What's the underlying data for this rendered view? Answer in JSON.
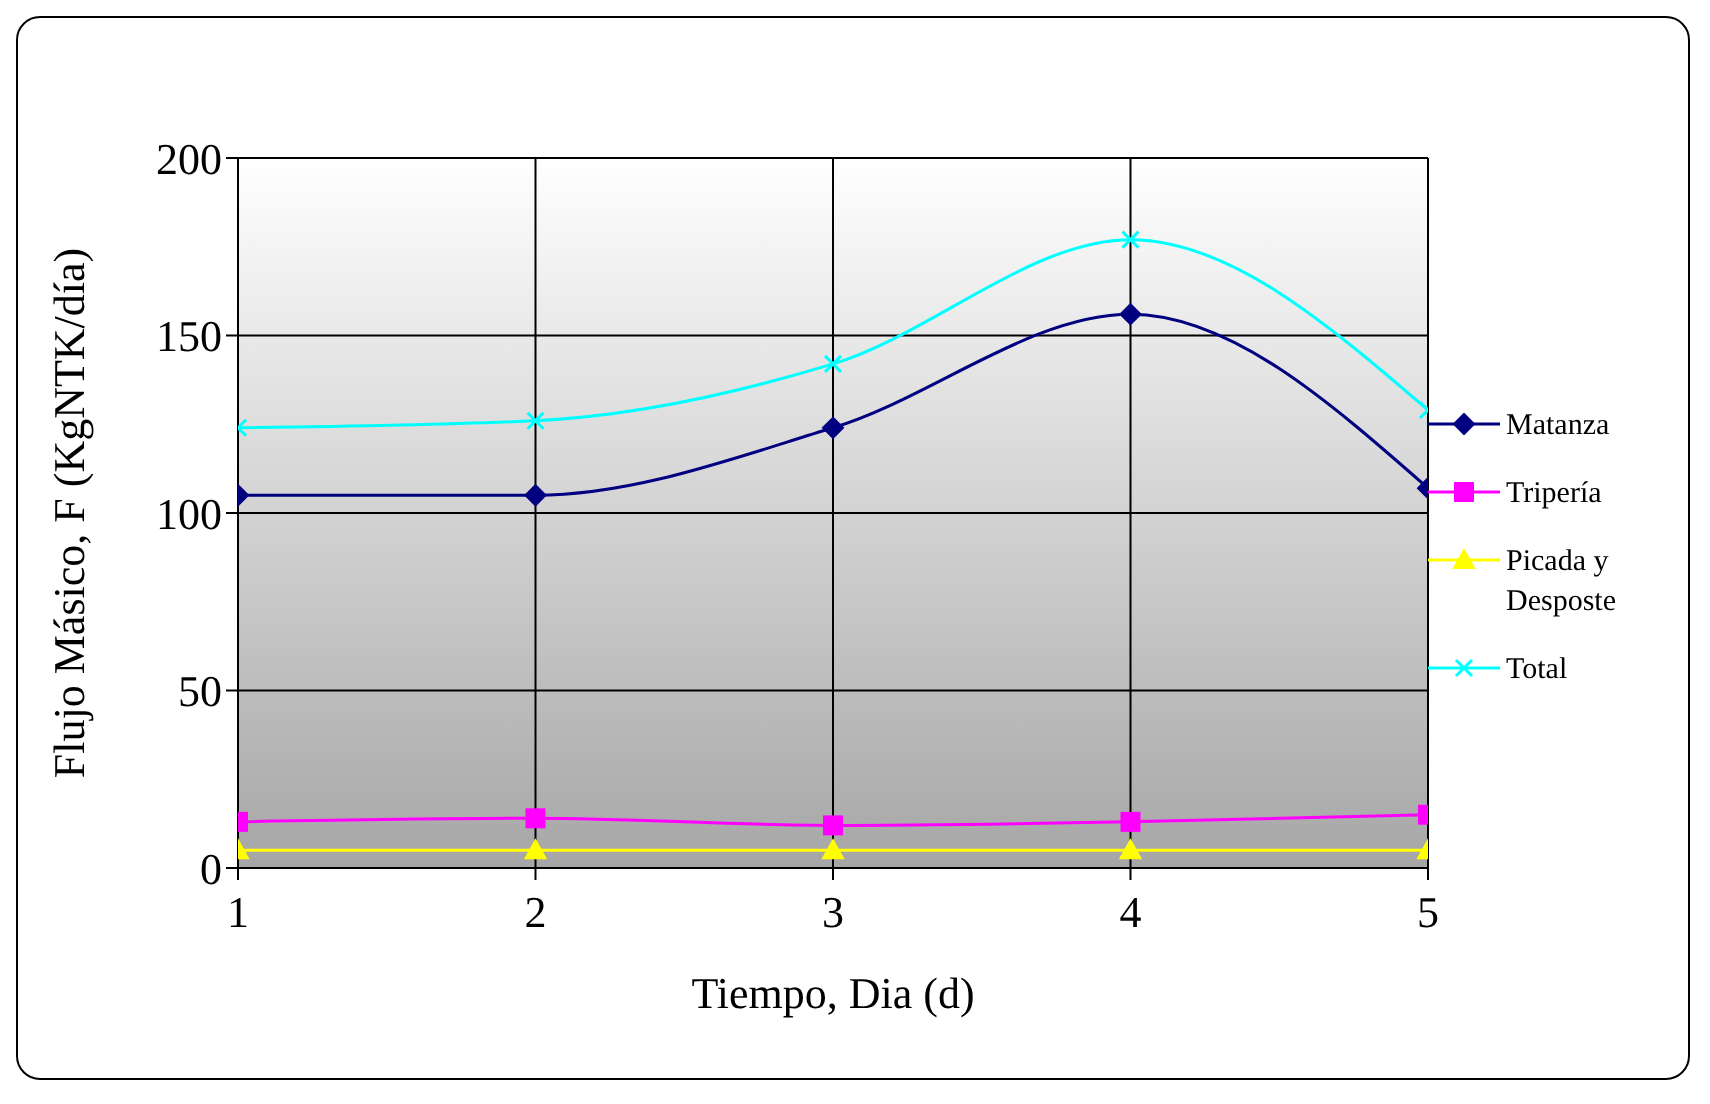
{
  "chart_data": {
    "type": "line",
    "xlabel": "Tiempo, Dia (d)",
    "ylabel": "Flujo Másico, F (KgNTK/día)",
    "x": [
      1,
      2,
      3,
      4,
      5
    ],
    "xlim": [
      1,
      5
    ],
    "xticks": [
      1,
      2,
      3,
      4,
      5
    ],
    "ylim": [
      0,
      200
    ],
    "yticks": [
      0,
      50,
      100,
      150,
      200
    ],
    "grid": true,
    "legend": "right",
    "series": [
      {
        "name": "Matanza",
        "color": "#000080",
        "marker": "diamond",
        "values": [
          105,
          105,
          124,
          156,
          107
        ]
      },
      {
        "name": "Tripería",
        "color": "#ff00ff",
        "marker": "square",
        "values": [
          13,
          14,
          12,
          13,
          15
        ]
      },
      {
        "name": "Picada y Desposte",
        "color": "#ffff00",
        "marker": "triangle",
        "values": [
          5,
          5,
          5,
          5,
          5
        ]
      },
      {
        "name": "Total",
        "color": "#00ffff",
        "marker": "cross",
        "values": [
          124,
          126,
          142,
          177,
          129
        ]
      }
    ]
  }
}
